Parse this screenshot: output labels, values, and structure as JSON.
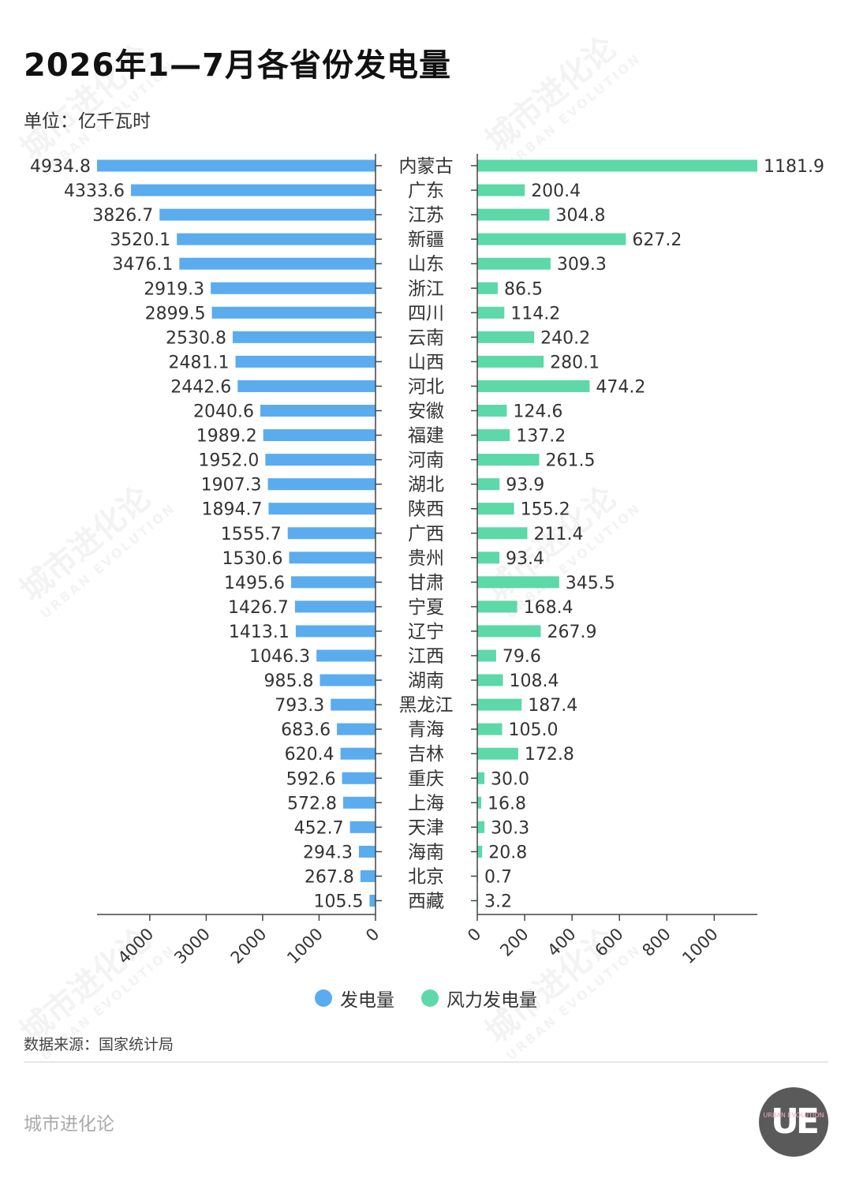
{
  "title": "2026年1—7月各省份发电量",
  "unit": "单位：亿千瓦时",
  "legend": [
    {
      "label": "发电量",
      "color": "#5aacef"
    },
    {
      "label": "风力发电量",
      "color": "#5dd8a9"
    }
  ],
  "source": "数据来源：国家统计局",
  "brand": "城市进化论",
  "logo": {
    "main": "UE",
    "sub": "URBAN EVOLUTION"
  },
  "watermark": {
    "cn": "城市进化论",
    "en": "URBAN EVOLUTION"
  },
  "chart_data": {
    "type": "bar",
    "categories": [
      "内蒙古",
      "广东",
      "江苏",
      "新疆",
      "山东",
      "浙江",
      "四川",
      "云南",
      "山西",
      "河北",
      "安徽",
      "福建",
      "河南",
      "湖北",
      "陕西",
      "广西",
      "贵州",
      "甘肃",
      "宁夏",
      "辽宁",
      "江西",
      "湖南",
      "黑龙江",
      "青海",
      "吉林",
      "重庆",
      "上海",
      "天津",
      "海南",
      "北京",
      "西藏"
    ],
    "series": [
      {
        "name": "发电量",
        "color": "#5aacef",
        "values": [
          4934.8,
          4333.6,
          3826.7,
          3520.1,
          3476.1,
          2919.3,
          2899.5,
          2530.8,
          2481.1,
          2442.6,
          2040.6,
          1989.2,
          1952.0,
          1907.3,
          1894.7,
          1555.7,
          1530.6,
          1495.6,
          1426.7,
          1413.1,
          1046.3,
          985.8,
          793.3,
          683.6,
          620.4,
          592.6,
          572.8,
          452.7,
          294.3,
          267.8,
          105.5
        ],
        "labels": [
          "4934.8",
          "4333.6",
          "3826.7",
          "3520.1",
          "3476.1",
          "2919.3",
          "2899.5",
          "2530.8",
          "2481.1",
          "2442.6",
          "2040.6",
          "1989.2",
          "1952.0",
          "1907.3",
          "1894.7",
          "1555.7",
          "1530.6",
          "1495.6",
          "1426.7",
          "1413.1",
          "1046.3",
          "985.8",
          "793.3",
          "683.6",
          "620.4",
          "592.6",
          "572.8",
          "452.7",
          "294.3",
          "267.8",
          "105.5"
        ],
        "ticks": [
          "0",
          "1000",
          "2000",
          "3000",
          "4000"
        ],
        "tick_values": [
          0,
          1000,
          2000,
          3000,
          4000
        ],
        "xlim": [
          0,
          4934.8
        ]
      },
      {
        "name": "风力发电量",
        "color": "#5dd8a9",
        "values": [
          1181.9,
          200.4,
          304.8,
          627.2,
          309.3,
          86.5,
          114.2,
          240.2,
          280.1,
          474.2,
          124.6,
          137.2,
          261.5,
          93.9,
          155.2,
          211.4,
          93.4,
          345.5,
          168.4,
          267.9,
          79.6,
          108.4,
          187.4,
          105.0,
          172.8,
          30.0,
          16.8,
          30.3,
          20.8,
          0.7,
          3.2
        ],
        "labels": [
          "1181.9",
          "200.4",
          "304.8",
          "627.2",
          "309.3",
          "86.5",
          "114.2",
          "240.2",
          "280.1",
          "474.2",
          "124.6",
          "137.2",
          "261.5",
          "93.9",
          "155.2",
          "211.4",
          "93.4",
          "345.5",
          "168.4",
          "267.9",
          "79.6",
          "108.4",
          "187.4",
          "105.0",
          "172.8",
          "30.0",
          "16.8",
          "30.3",
          "20.8",
          "0.7",
          "3.2"
        ],
        "ticks": [
          "0",
          "200",
          "400",
          "600",
          "800",
          "1000"
        ],
        "tick_values": [
          0,
          200,
          400,
          600,
          800,
          1000
        ],
        "xlim": [
          0,
          1181.9
        ]
      }
    ]
  }
}
